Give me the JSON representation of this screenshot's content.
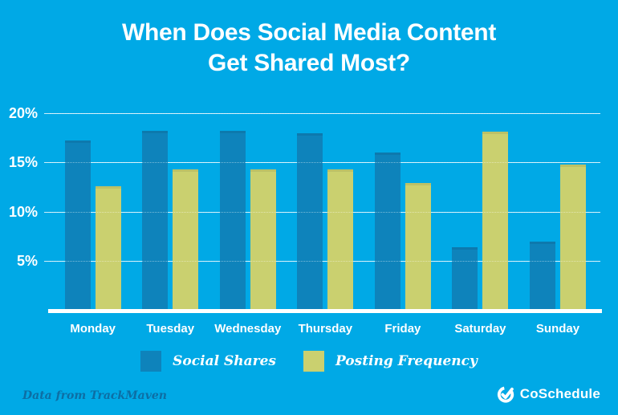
{
  "title": {
    "line1": "When Does Social Media Content",
    "line2": "Get Shared Most?"
  },
  "chart_data": {
    "type": "bar",
    "title": "When Does Social Media Content Get Shared Most?",
    "categories": [
      "Monday",
      "Tuesday",
      "Wednesday",
      "Thursday",
      "Friday",
      "Saturday",
      "Sunday"
    ],
    "series": [
      {
        "name": "Social Shares",
        "color": "#0e83bb",
        "values": [
          17.2,
          18.2,
          18.2,
          17.9,
          16.0,
          6.4,
          7.0
        ]
      },
      {
        "name": "Posting Frequency",
        "color": "#cad06f",
        "values": [
          12.6,
          14.3,
          14.3,
          14.3,
          12.9,
          18.1,
          14.8
        ]
      }
    ],
    "xlabel": "",
    "ylabel": "",
    "y_ticks": [
      5,
      10,
      15,
      20
    ],
    "y_tick_suffix": "%",
    "ylim": [
      0,
      21
    ],
    "grid": true,
    "legend_position": "bottom"
  },
  "footer": {
    "source_note": "Data from TrackMaven",
    "brand_name": "CoSchedule"
  },
  "colors": {
    "background": "#00a9e6",
    "bar_social_shares": "#0e83bb",
    "bar_posting_frequency": "#cad06f",
    "text_primary": "#ffffff",
    "source_text": "#0d6ea4"
  }
}
